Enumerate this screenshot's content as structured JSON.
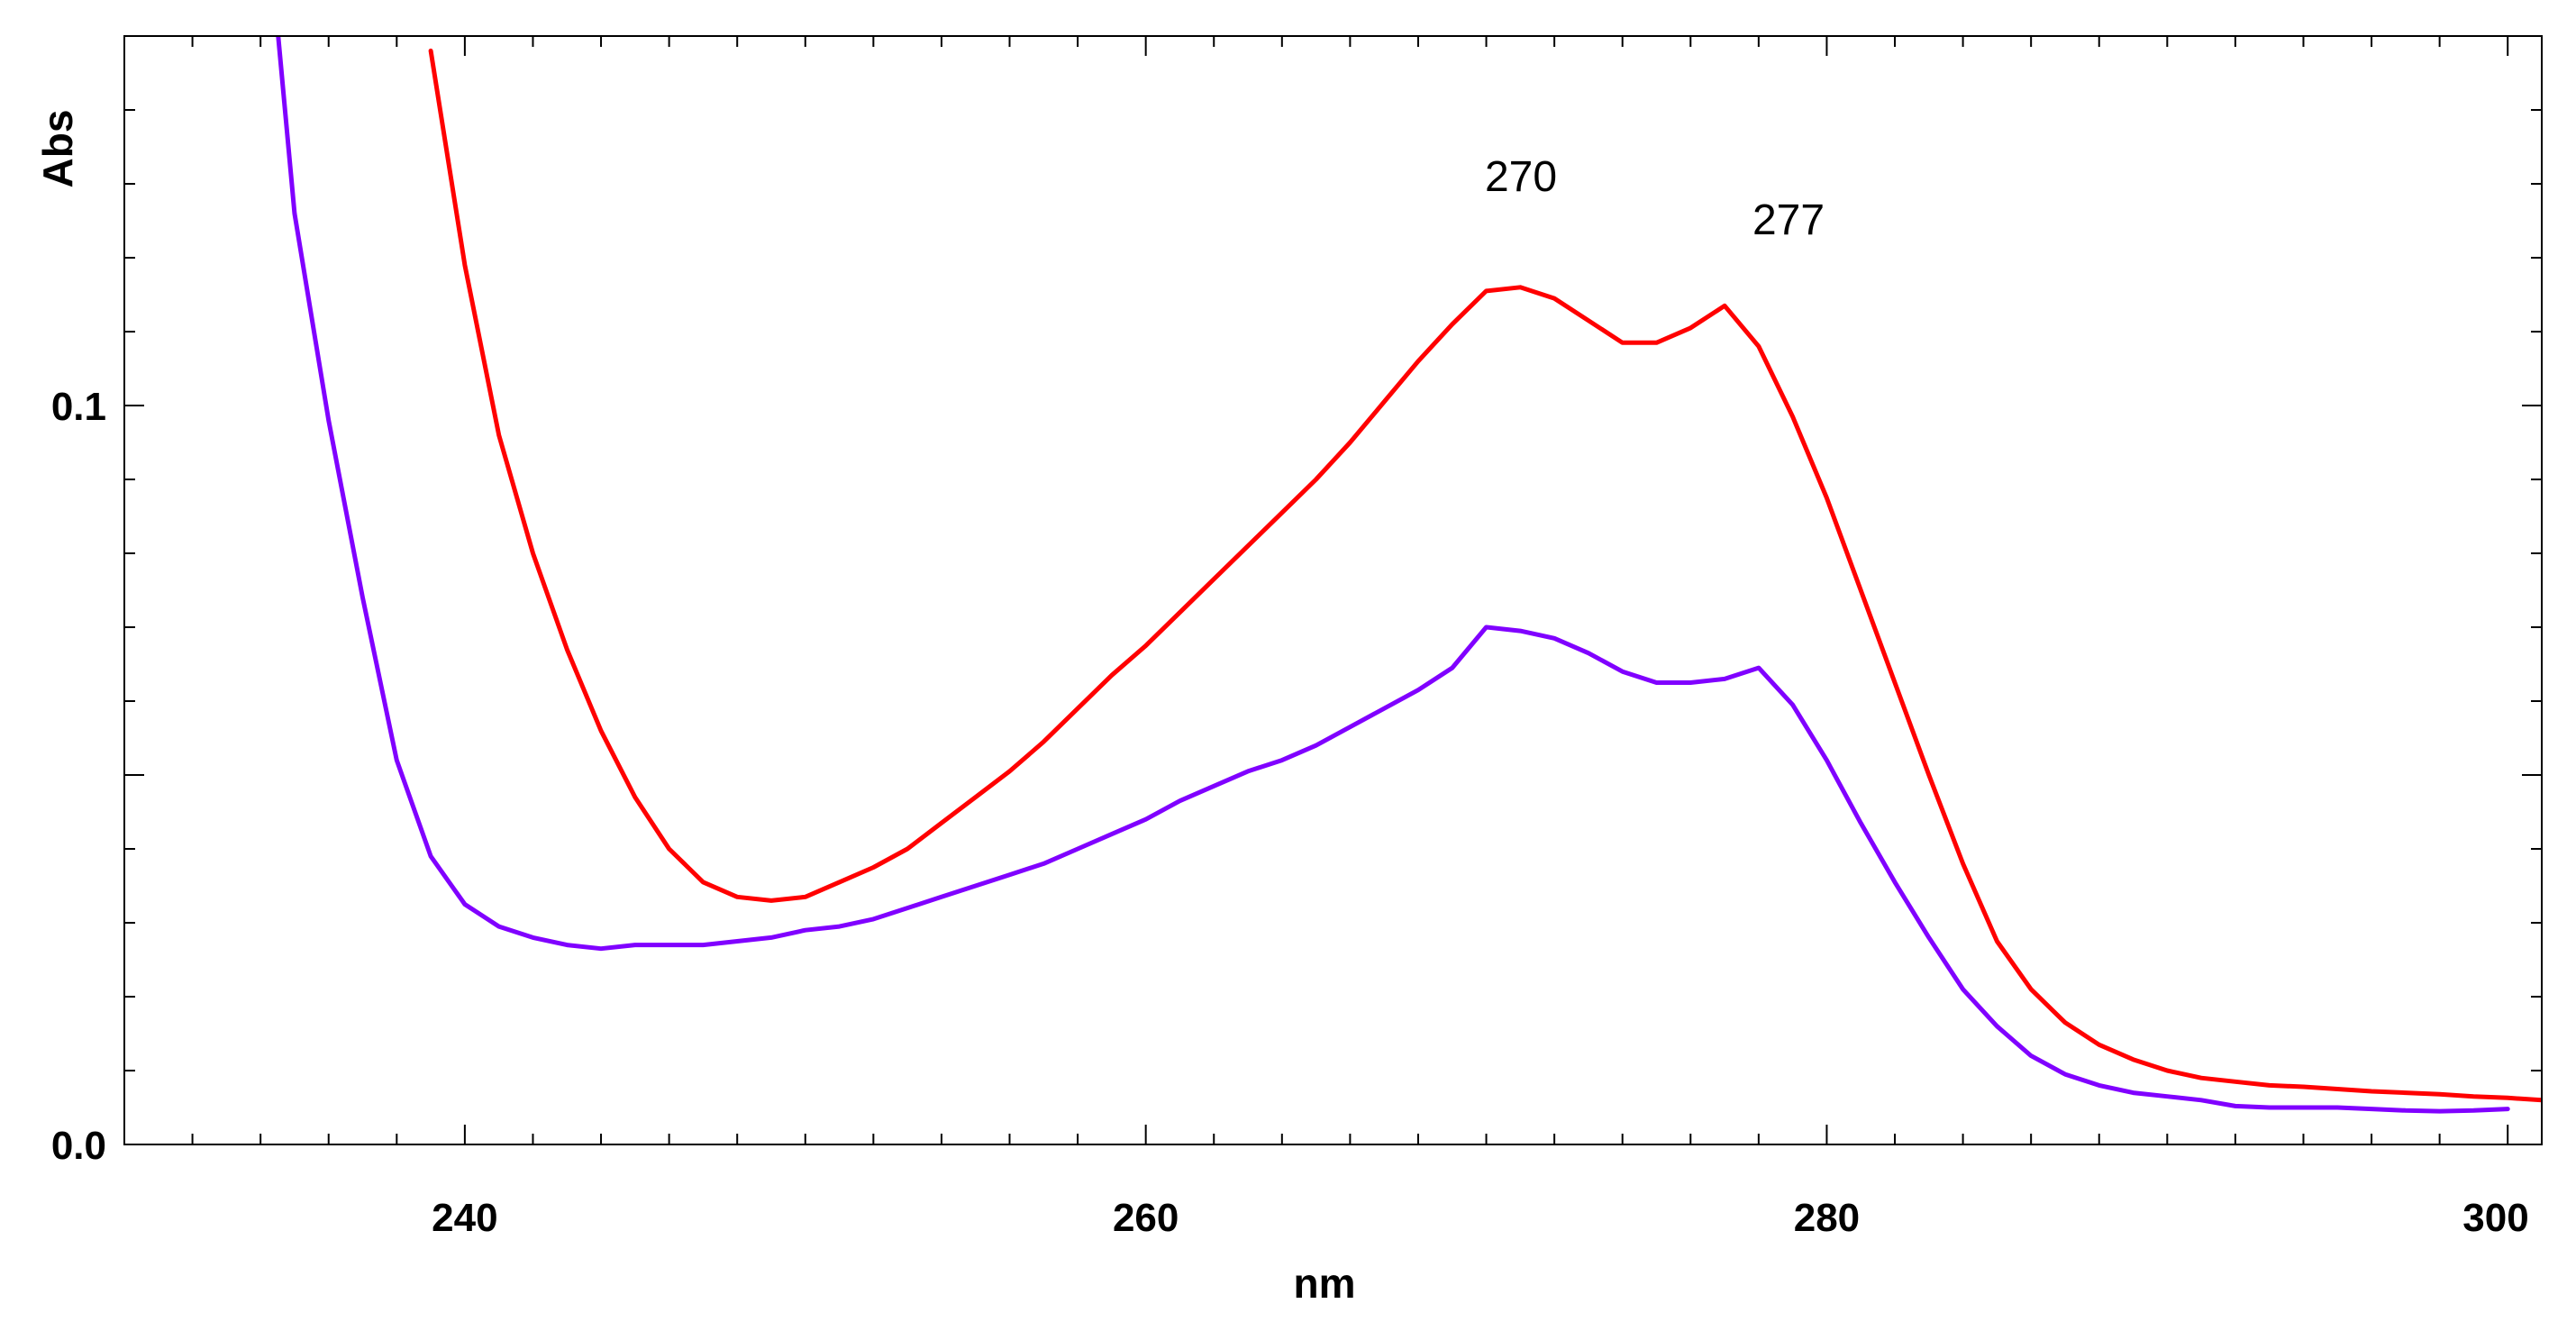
{
  "chart_data": {
    "type": "line",
    "xlabel": "nm",
    "ylabel": "Abs",
    "xlim": [
      230,
      301
    ],
    "ylim": [
      0.0,
      0.15
    ],
    "x_ticks": [
      {
        "value": 240,
        "label": "240"
      },
      {
        "value": 260,
        "label": "260"
      },
      {
        "value": 280,
        "label": "280"
      },
      {
        "value": 300,
        "label": "300"
      }
    ],
    "y_ticks": [
      {
        "value": 0.0,
        "label": "0.0"
      },
      {
        "value": 0.1,
        "label": "0.1"
      }
    ],
    "grid": false,
    "annotations": [
      {
        "text": "270",
        "x": 270,
        "y": 0.1245
      },
      {
        "text": "277",
        "x": 277,
        "y": 0.1185
      }
    ],
    "series": [
      {
        "color": "#ff0000",
        "x": [
          239,
          240,
          241,
          242,
          243,
          244,
          245,
          246,
          247,
          248,
          249,
          250,
          251,
          252,
          253,
          254,
          255,
          256,
          257,
          258,
          259,
          260,
          261,
          262,
          263,
          264,
          265,
          266,
          267,
          268,
          269,
          270,
          271,
          272,
          273,
          274,
          275,
          276,
          277,
          278,
          279,
          280,
          281,
          282,
          283,
          284,
          285,
          286,
          287,
          288,
          289,
          290,
          291,
          292,
          293,
          294,
          295,
          296,
          297,
          298,
          299,
          300,
          301
        ],
        "y": [
          0.148,
          0.119,
          0.096,
          0.08,
          0.067,
          0.056,
          0.047,
          0.04,
          0.0355,
          0.0335,
          0.033,
          0.0335,
          0.0355,
          0.0375,
          0.04,
          0.0435,
          0.047,
          0.0505,
          0.0545,
          0.059,
          0.0635,
          0.0675,
          0.072,
          0.0765,
          0.081,
          0.0855,
          0.09,
          0.095,
          0.1005,
          0.106,
          0.111,
          0.1155,
          0.116,
          0.1145,
          0.1115,
          0.1085,
          0.1085,
          0.1105,
          0.1135,
          0.108,
          0.0985,
          0.0875,
          0.075,
          0.0625,
          0.05,
          0.038,
          0.0275,
          0.021,
          0.0165,
          0.0135,
          0.0115,
          0.01,
          0.009,
          0.0085,
          0.008,
          0.0078,
          0.0075,
          0.0072,
          0.007,
          0.0068,
          0.0065,
          0.0063,
          0.006
        ]
      },
      {
        "color": "#8000ff",
        "x": [
          234.5,
          235,
          236,
          237,
          238,
          239,
          240,
          241,
          242,
          243,
          244,
          245,
          246,
          247,
          248,
          249,
          250,
          251,
          252,
          253,
          254,
          255,
          256,
          257,
          258,
          259,
          260,
          261,
          262,
          263,
          264,
          265,
          266,
          267,
          268,
          269,
          270,
          271,
          272,
          273,
          274,
          275,
          276,
          277,
          278,
          279,
          280,
          281,
          282,
          283,
          284,
          285,
          286,
          287,
          288,
          289,
          290,
          291,
          292,
          293,
          294,
          295,
          296,
          297,
          298,
          299,
          300
        ],
        "y": [
          0.151,
          0.126,
          0.098,
          0.074,
          0.052,
          0.039,
          0.0325,
          0.0295,
          0.028,
          0.027,
          0.0265,
          0.027,
          0.027,
          0.027,
          0.0275,
          0.028,
          0.029,
          0.0295,
          0.0305,
          0.032,
          0.0335,
          0.035,
          0.0365,
          0.038,
          0.04,
          0.042,
          0.044,
          0.0465,
          0.0485,
          0.0505,
          0.052,
          0.054,
          0.0565,
          0.059,
          0.0615,
          0.0645,
          0.07,
          0.0695,
          0.0685,
          0.0665,
          0.064,
          0.0625,
          0.0625,
          0.063,
          0.0645,
          0.0595,
          0.052,
          0.0435,
          0.0355,
          0.028,
          0.021,
          0.016,
          0.012,
          0.0095,
          0.008,
          0.007,
          0.0065,
          0.006,
          0.0052,
          0.005,
          0.005,
          0.005,
          0.0048,
          0.0046,
          0.0045,
          0.0046,
          0.0048
        ]
      }
    ]
  }
}
